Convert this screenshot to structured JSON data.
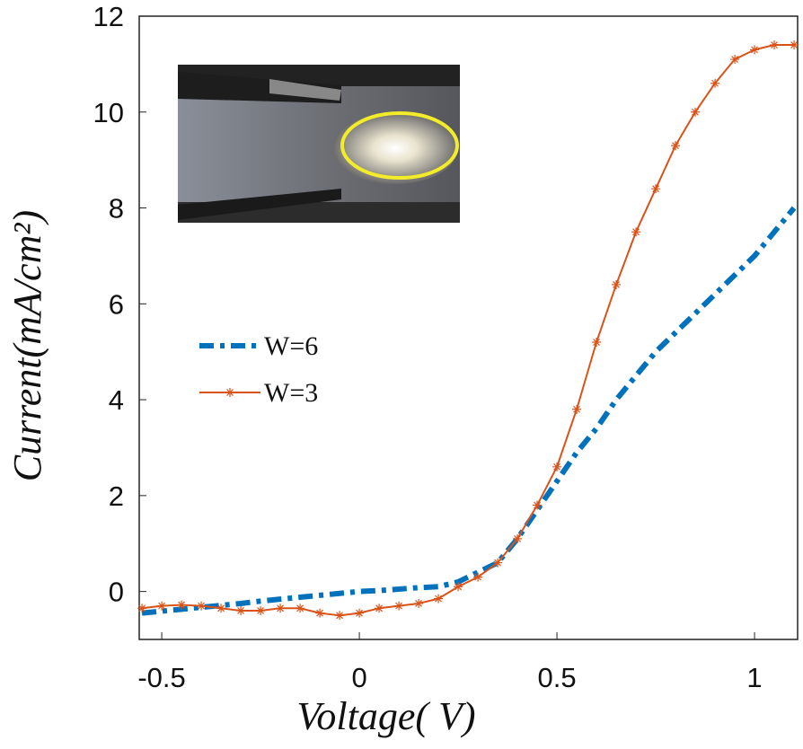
{
  "chart_data": {
    "type": "line",
    "x_label": "Voltage( V)",
    "y_label": "Current(mA/cm²)",
    "x": [
      -0.55,
      -0.5,
      -0.45,
      -0.4,
      -0.35,
      -0.3,
      -0.25,
      -0.2,
      -0.15,
      -0.1,
      -0.05,
      0,
      0.05,
      0.1,
      0.15,
      0.2,
      0.25,
      0.3,
      0.35,
      0.4,
      0.45,
      0.5,
      0.55,
      0.6,
      0.65,
      0.7,
      0.75,
      0.8,
      0.85,
      0.9,
      0.95,
      1.0,
      1.05,
      1.1
    ],
    "series": [
      {
        "name": "W=6",
        "color": "#0072bd",
        "style": "dashdot",
        "values": [
          -0.45,
          -0.41,
          -0.37,
          -0.33,
          -0.29,
          -0.25,
          -0.2,
          -0.16,
          -0.12,
          -0.08,
          -0.04,
          0,
          0.02,
          0.05,
          0.08,
          0.1,
          0.2,
          0.4,
          0.6,
          1.1,
          1.7,
          2.3,
          2.9,
          3.4,
          4.0,
          4.5,
          5.0,
          5.4,
          5.8,
          6.2,
          6.6,
          7.0,
          7.5,
          8.0
        ]
      },
      {
        "name": "W=3",
        "color": "#d95319",
        "style": "solid-star",
        "values": [
          -0.35,
          -0.3,
          -0.28,
          -0.3,
          -0.35,
          -0.4,
          -0.4,
          -0.35,
          -0.35,
          -0.45,
          -0.5,
          -0.45,
          -0.35,
          -0.3,
          -0.25,
          -0.15,
          0.1,
          0.3,
          0.6,
          1.1,
          1.8,
          2.6,
          3.8,
          5.2,
          6.4,
          7.5,
          8.4,
          9.3,
          10.0,
          10.6,
          11.1,
          11.3,
          11.4,
          11.4
        ]
      }
    ],
    "xlim": [
      -0.557,
      1.109
    ],
    "ylim": [
      -1,
      12
    ],
    "xticks": [
      -0.5,
      0,
      0.5,
      1
    ],
    "yticks": [
      0,
      2,
      4,
      6,
      8,
      10,
      12
    ],
    "grid": false,
    "legend": "center left"
  }
}
